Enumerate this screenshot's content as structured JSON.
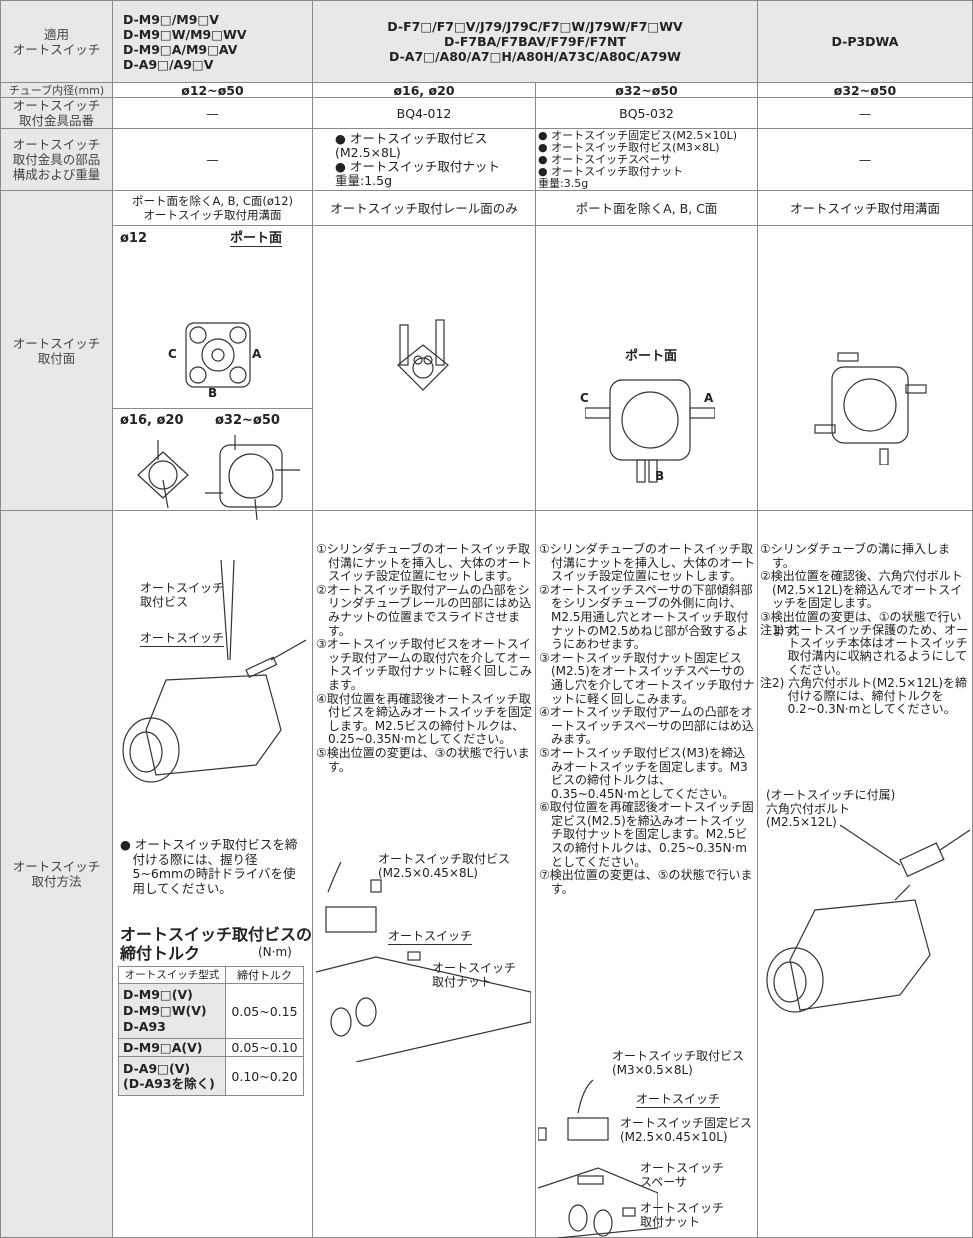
{
  "header": {
    "label": [
      "適用",
      "オートスイッチ"
    ],
    "col1": [
      "D-M9□/M9□V",
      "D-M9□W/M9□WV",
      "D-M9□A/M9□AV",
      "D-A9□/A9□V"
    ],
    "col23": [
      "D-F7□/F7□V/J79/J79C/F7□W/J79W/F7□WV",
      "D-F7BA/F7BAV/F79F/F7NT",
      "D-A7□/A80/A7□H/A80H/A73C/A80C/A79W"
    ],
    "col4": "D-P3DWA"
  },
  "rows": {
    "bore": {
      "label": "チューブ内径(mm)",
      "values": [
        "ø12~ø50",
        "ø16, ø20",
        "ø32~ø50",
        "ø32~ø50"
      ]
    },
    "bracket_no": {
      "label": [
        "オートスイッチ",
        "取付金具品番"
      ],
      "values": [
        "—",
        "BQ4-012",
        "BQ5-032",
        "—"
      ]
    },
    "bracket_parts": {
      "label": [
        "オートスイッチ",
        "取付金具の部品",
        "構成および重量"
      ],
      "col1": "—",
      "col2": [
        "● オートスイッチ取付ビス",
        "(M2.5×8L)",
        "● オートスイッチ取付ナット",
        "重量:1.5g"
      ],
      "col3": [
        "● オートスイッチ固定ビス(M2.5×10L)",
        "● オートスイッチ取付ビス(M3×8L)",
        "● オートスイッチスペーサ",
        "● オートスイッチ取付ナット",
        "重量:3.5g"
      ],
      "col4": "—"
    },
    "mount_surface": {
      "label": [
        "オートスイッチ",
        "取付面"
      ],
      "caption1": [
        "ポート面を除くA, B, C面(ø12)",
        "オートスイッチ取付用溝面"
      ],
      "caption2": "オートスイッチ取付レール面のみ",
      "caption3": "ポート面を除くA, B, C面",
      "caption4": "オートスイッチ取付用溝面",
      "fig1": {
        "title1": "ø12",
        "port": "ポート面",
        "a": "A",
        "b": "B",
        "c": "C",
        "title2": "ø16, ø20",
        "title3": "ø32~ø50"
      },
      "fig3": {
        "port": "ポート面",
        "a": "A",
        "b": "B",
        "c": "C"
      }
    },
    "mount_method": {
      "label": [
        "オートスイッチ",
        "取付方法"
      ],
      "col1": {
        "fig_screw": [
          "オートスイッチ",
          "取付ビス"
        ],
        "fig_switch": "オートスイッチ",
        "note": "● オートスイッチ取付ビスを締付ける際には、握り径5~6mmの時計ドライバを使用してください。",
        "torque_title": [
          "オートスイッチ取付ビスの",
          "締付トルク"
        ],
        "torque_unit": "(N·m)",
        "table_header": [
          "オートスイッチ型式",
          "締付トルク"
        ],
        "table_rows": [
          {
            "model": [
              "D-M9□(V)",
              "D-M9□W(V)",
              "D-A93"
            ],
            "torque": "0.05~0.15"
          },
          {
            "model": [
              "D-M9□A(V)"
            ],
            "torque": "0.05~0.10"
          },
          {
            "model": [
              "D-A9□(V)",
              "(D-A93を除く)"
            ],
            "torque": "0.10~0.20"
          }
        ]
      },
      "col2": {
        "steps": [
          "①シリンダチューブのオートスイッチ取付溝にナットを挿入し、大体のオートスイッチ設定位置にセットします。",
          "②オートスイッチ取付アームの凸部をシリンダチューブレールの凹部にはめ込みナットの位置までスライドさせます。",
          "③オートスイッチ取付ビスをオートスイッチ取付アームの取付穴を介してオートスイッチ取付ナットに軽く回しこみます。",
          "④取付位置を再確認後オートスイッチ取付ビスを締込みオートスイッチを固定します。M2.5ビスの締付トルクは、0.25~0.35N·mとしてください。",
          "⑤検出位置の変更は、③の状態で行います。"
        ],
        "fig_screw": [
          "オートスイッチ取付ビス",
          "(M2.5×0.45×8L)"
        ],
        "fig_switch": "オートスイッチ",
        "fig_nut": [
          "オートスイッチ",
          "取付ナット"
        ]
      },
      "col3": {
        "steps": [
          "①シリンダチューブのオートスイッチ取付溝にナットを挿入し、大体のオートスイッチ設定位置にセットします。",
          "②オートスイッチスペーサの下部傾斜部をシリンダチューブの外側に向け、M2.5用通し穴とオートスイッチ取付ナットのM2.5めねじ部が合致するようにあわせます。",
          "③オートスイッチ取付ナット固定ビス(M2.5)をオートスイッチスペーサの通し穴を介してオートスイッチ取付ナットに軽く回しこみます。",
          "④オートスイッチ取付アームの凸部をオートスイッチスペーサの凹部にはめ込みます。",
          "⑤オートスイッチ取付ビス(M3)を締込みオートスイッチを固定します。M3ビスの締付トルクは、0.35~0.45N·mとしてください。",
          "⑥取付位置を再確認後オートスイッチ固定ビス(M2.5)を締込みオートスイッチ取付ナットを固定します。M2.5ビスの締付トルクは、0.25~0.35N·mとしてください。",
          "⑦検出位置の変更は、⑤の状態で行います。"
        ],
        "fig_screw": [
          "オートスイッチ取付ビス",
          "(M3×0.5×8L)"
        ],
        "fig_switch": "オートスイッチ",
        "fig_fix": [
          "オートスイッチ固定ビス",
          "(M2.5×0.45×10L)"
        ],
        "fig_spacer": [
          "オートスイッチ",
          "スペーサ"
        ],
        "fig_nut": [
          "オートスイッチ",
          "取付ナット"
        ]
      },
      "col4": {
        "steps": [
          "①シリンダチューブの溝に挿入します。",
          "②検出位置を確認後、六角穴付ボルト(M2.5×12L)を締込んでオートスイッチを固定します。",
          "③検出位置の変更は、①の状態で行います。"
        ],
        "notes": [
          "注1) オートスイッチ保護のため、オートスイッチ本体はオートスイッチ取付溝内に収納されるようにしてください。",
          "注2) 六角穴付ボルト(M2.5×12L)を締付ける際には、締付トルクを0.2~0.3N·mとしてください。"
        ],
        "fig_bolt": [
          "(オートスイッチに付属)",
          "六角穴付ボルト",
          "(M2.5×12L)"
        ]
      }
    }
  }
}
